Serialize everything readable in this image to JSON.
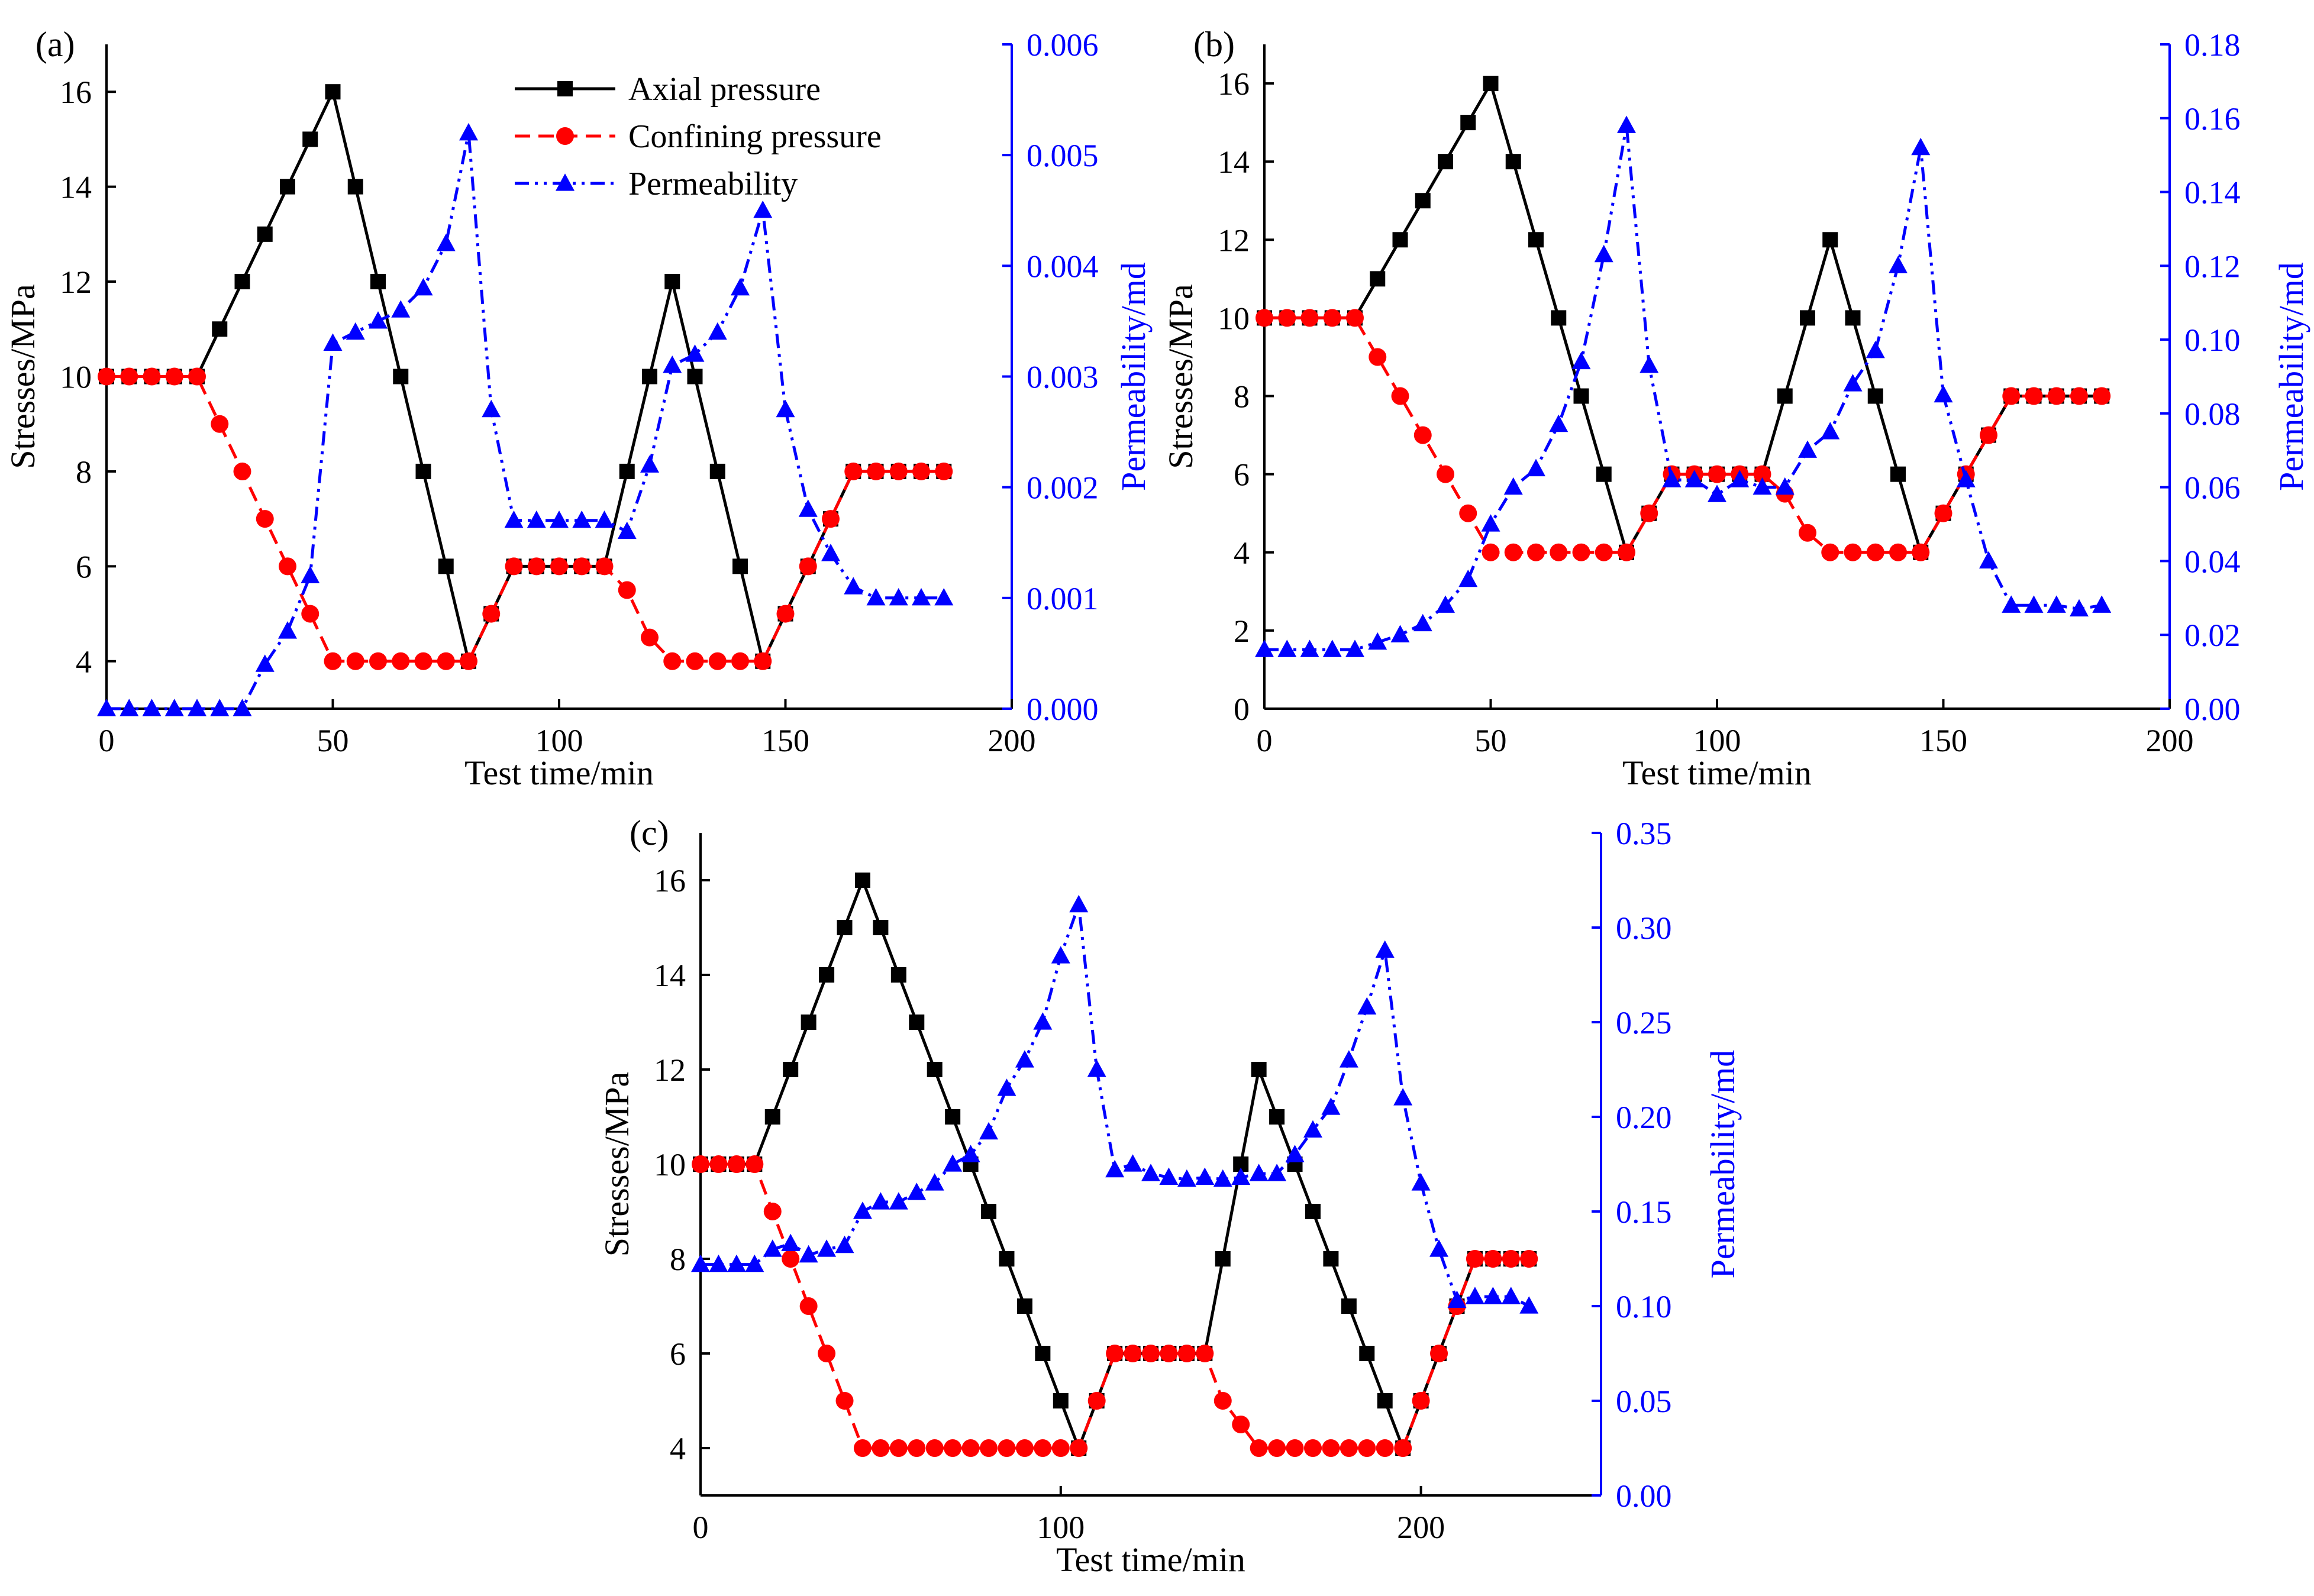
{
  "colors": {
    "axial": "#000000",
    "confining": "#ff0000",
    "permeability": "#0000ff",
    "axis_left": "#000000",
    "axis_right": "#0000ff"
  },
  "legend": {
    "axial": "Axial pressure",
    "confining": "Confining pressure",
    "permeability": "Permeability"
  },
  "chart_data": [
    {
      "panel": "(a)",
      "type": "line",
      "xlabel": "Test time/min",
      "ylabel": "Stresses/MPa",
      "y2label": "Permeability/md",
      "xlim": [
        0,
        200
      ],
      "ylim": [
        3,
        17
      ],
      "y2lim": [
        0,
        0.006
      ],
      "xticks": [
        0,
        50,
        100,
        150,
        200
      ],
      "xtick_labels": [
        "0",
        "50",
        "100",
        "150",
        "200"
      ],
      "yticks": [
        4,
        6,
        8,
        10,
        12,
        14,
        16
      ],
      "ytick_labels": [
        "4",
        "6",
        "8",
        "10",
        "12",
        "14",
        "16"
      ],
      "y2ticks": [
        0,
        0.001,
        0.002,
        0.003,
        0.004,
        0.005,
        0.006
      ],
      "y2tick_labels": [
        "0.000",
        "0.001",
        "0.002",
        "0.003",
        "0.004",
        "0.005",
        "0.006"
      ],
      "legend_position": "top-center",
      "series": [
        {
          "name": "Axial pressure",
          "axis": "left",
          "x": [
            0,
            5,
            10,
            15,
            20,
            25,
            30,
            35,
            40,
            45,
            50,
            55,
            60,
            65,
            70,
            75,
            80,
            85,
            90,
            95,
            100,
            105,
            110,
            115,
            120,
            125,
            130,
            135,
            140,
            145,
            150,
            155,
            160,
            165,
            170,
            175,
            180,
            185
          ],
          "y": [
            10,
            10,
            10,
            10,
            10,
            11,
            12,
            13,
            14,
            15,
            16,
            14,
            12,
            10,
            8,
            6,
            4,
            5,
            6,
            6,
            6,
            6,
            6,
            8,
            10,
            12,
            10,
            8,
            6,
            4,
            5,
            6,
            7,
            8,
            8,
            8,
            8,
            8
          ]
        },
        {
          "name": "Confining pressure",
          "axis": "left",
          "x": [
            0,
            5,
            10,
            15,
            20,
            25,
            30,
            35,
            40,
            45,
            50,
            55,
            60,
            65,
            70,
            75,
            80,
            85,
            90,
            95,
            100,
            105,
            110,
            115,
            120,
            125,
            130,
            135,
            140,
            145,
            150,
            155,
            160,
            165,
            170,
            175,
            180,
            185
          ],
          "y": [
            10,
            10,
            10,
            10,
            10,
            9,
            8,
            7,
            6,
            5,
            4,
            4,
            4,
            4,
            4,
            4,
            4,
            5,
            6,
            6,
            6,
            6,
            6,
            5.5,
            4.5,
            4,
            4,
            4,
            4,
            4,
            5,
            6,
            7,
            8,
            8,
            8,
            8,
            8
          ]
        },
        {
          "name": "Permeability",
          "axis": "right",
          "x": [
            0,
            5,
            10,
            15,
            20,
            25,
            30,
            35,
            40,
            45,
            50,
            55,
            60,
            65,
            70,
            75,
            80,
            85,
            90,
            95,
            100,
            105,
            110,
            115,
            120,
            125,
            130,
            135,
            140,
            145,
            150,
            155,
            160,
            165,
            170,
            175,
            180,
            185
          ],
          "y": [
            0,
            0,
            0,
            0,
            0,
            0,
            0,
            0.0004,
            0.0007,
            0.0012,
            0.0033,
            0.0034,
            0.0035,
            0.0036,
            0.0038,
            0.0042,
            0.0052,
            0.0027,
            0.0017,
            0.0017,
            0.0017,
            0.0017,
            0.0017,
            0.0016,
            0.0022,
            0.0031,
            0.0032,
            0.0034,
            0.0038,
            0.0045,
            0.0027,
            0.0018,
            0.0014,
            0.0011,
            0.001,
            0.001,
            0.001,
            0.001
          ]
        }
      ]
    },
    {
      "panel": "(b)",
      "type": "line",
      "xlabel": "Test time/min",
      "ylabel": "Stresses/MPa",
      "y2label": "Permeability/md",
      "xlim": [
        0,
        200
      ],
      "ylim": [
        0,
        17
      ],
      "y2lim": [
        0,
        0.18
      ],
      "xticks": [
        0,
        50,
        100,
        150,
        200
      ],
      "xtick_labels": [
        "0",
        "50",
        "100",
        "150",
        "200"
      ],
      "yticks": [
        0,
        2,
        4,
        6,
        8,
        10,
        12,
        14,
        16
      ],
      "ytick_labels": [
        "0",
        "2",
        "4",
        "6",
        "8",
        "10",
        "12",
        "14",
        "16"
      ],
      "y2ticks": [
        0,
        0.02,
        0.04,
        0.06,
        0.08,
        0.1,
        0.12,
        0.14,
        0.16,
        0.18
      ],
      "y2tick_labels": [
        "0.00",
        "0.02",
        "0.04",
        "0.06",
        "0.08",
        "0.10",
        "0.12",
        "0.14",
        "0.16",
        "0.18"
      ],
      "series": [
        {
          "name": "Axial pressure",
          "axis": "left",
          "x": [
            0,
            5,
            10,
            15,
            20,
            25,
            30,
            35,
            40,
            45,
            50,
            55,
            60,
            65,
            70,
            75,
            80,
            85,
            90,
            95,
            100,
            105,
            110,
            115,
            120,
            125,
            130,
            135,
            140,
            145,
            150,
            155,
            160,
            165,
            170,
            175,
            180,
            185
          ],
          "y": [
            10,
            10,
            10,
            10,
            10,
            11,
            12,
            13,
            14,
            15,
            16,
            14,
            12,
            10,
            8,
            6,
            4,
            5,
            6,
            6,
            6,
            6,
            6,
            8,
            10,
            12,
            10,
            8,
            6,
            4,
            5,
            6,
            7,
            8,
            8,
            8,
            8,
            8
          ]
        },
        {
          "name": "Confining pressure",
          "axis": "left",
          "x": [
            0,
            5,
            10,
            15,
            20,
            25,
            30,
            35,
            40,
            45,
            50,
            55,
            60,
            65,
            70,
            75,
            80,
            85,
            90,
            95,
            100,
            105,
            110,
            115,
            120,
            125,
            130,
            135,
            140,
            145,
            150,
            155,
            160,
            165,
            170,
            175,
            180,
            185
          ],
          "y": [
            10,
            10,
            10,
            10,
            10,
            9,
            8,
            7,
            6,
            5,
            4,
            4,
            4,
            4,
            4,
            4,
            4,
            5,
            6,
            6,
            6,
            6,
            6,
            5.5,
            4.5,
            4,
            4,
            4,
            4,
            4,
            5,
            6,
            7,
            8,
            8,
            8,
            8,
            8
          ]
        },
        {
          "name": "Permeability",
          "axis": "right",
          "x": [
            0,
            5,
            10,
            15,
            20,
            25,
            30,
            35,
            40,
            45,
            50,
            55,
            60,
            65,
            70,
            75,
            80,
            85,
            90,
            95,
            100,
            105,
            110,
            115,
            120,
            125,
            130,
            135,
            140,
            145,
            150,
            155,
            160,
            165,
            170,
            175,
            180,
            185
          ],
          "y": [
            0.016,
            0.016,
            0.016,
            0.016,
            0.016,
            0.018,
            0.02,
            0.023,
            0.028,
            0.035,
            0.05,
            0.06,
            0.065,
            0.077,
            0.094,
            0.123,
            0.158,
            0.093,
            0.062,
            0.062,
            0.058,
            0.062,
            0.06,
            0.06,
            0.07,
            0.075,
            0.088,
            0.097,
            0.12,
            0.152,
            0.085,
            0.062,
            0.04,
            0.028,
            0.028,
            0.028,
            0.027,
            0.028
          ]
        }
      ]
    },
    {
      "panel": "(c)",
      "type": "line",
      "xlabel": "Test time/min",
      "ylabel": "Stresses/MPa",
      "y2label": "Permeability/md",
      "xlim": [
        0,
        250
      ],
      "ylim": [
        3,
        17
      ],
      "y2lim": [
        0,
        0.35
      ],
      "xticks": [
        0,
        100,
        200
      ],
      "xtick_labels": [
        "0",
        "100",
        "200"
      ],
      "yticks": [
        4,
        6,
        8,
        10,
        12,
        14,
        16
      ],
      "ytick_labels": [
        "4",
        "6",
        "8",
        "10",
        "12",
        "14",
        "16"
      ],
      "y2ticks": [
        0,
        0.05,
        0.1,
        0.15,
        0.2,
        0.25,
        0.3,
        0.35
      ],
      "y2tick_labels": [
        "0.00",
        "0.05",
        "0.10",
        "0.15",
        "0.20",
        "0.25",
        "0.30",
        "0.35"
      ],
      "series": [
        {
          "name": "Axial pressure",
          "axis": "left",
          "x": [
            0,
            5,
            10,
            15,
            20,
            25,
            30,
            35,
            40,
            45,
            50,
            55,
            60,
            65,
            70,
            75,
            80,
            85,
            90,
            95,
            100,
            105,
            110,
            115,
            120,
            125,
            130,
            135,
            140,
            145,
            150,
            155,
            160,
            165,
            170,
            175,
            180,
            185,
            190,
            195,
            200,
            205,
            210,
            215,
            220,
            225,
            230
          ],
          "y": [
            10,
            10,
            10,
            10,
            11,
            12,
            13,
            14,
            15,
            16,
            15,
            14,
            13,
            12,
            11,
            10,
            9,
            8,
            7,
            6,
            5,
            4,
            5,
            6,
            6,
            6,
            6,
            6,
            6,
            8,
            10,
            12,
            11,
            10,
            9,
            8,
            7,
            6,
            5,
            4,
            5,
            6,
            7,
            8,
            8,
            8,
            8
          ]
        },
        {
          "name": "Confining pressure",
          "axis": "left",
          "x": [
            0,
            5,
            10,
            15,
            20,
            25,
            30,
            35,
            40,
            45,
            50,
            55,
            60,
            65,
            70,
            75,
            80,
            85,
            90,
            95,
            100,
            105,
            110,
            115,
            120,
            125,
            130,
            135,
            140,
            145,
            150,
            155,
            160,
            165,
            170,
            175,
            180,
            185,
            190,
            195,
            200,
            205,
            210,
            215,
            220,
            225,
            230
          ],
          "y": [
            10,
            10,
            10,
            10,
            9,
            8,
            7,
            6,
            5,
            4,
            4,
            4,
            4,
            4,
            4,
            4,
            4,
            4,
            4,
            4,
            4,
            4,
            5,
            6,
            6,
            6,
            6,
            6,
            6,
            5,
            4.5,
            4,
            4,
            4,
            4,
            4,
            4,
            4,
            4,
            4,
            5,
            6,
            7,
            8,
            8,
            8,
            8
          ]
        },
        {
          "name": "Permeability",
          "axis": "right",
          "x": [
            0,
            5,
            10,
            15,
            20,
            25,
            30,
            35,
            40,
            45,
            50,
            55,
            60,
            65,
            70,
            75,
            80,
            85,
            90,
            95,
            100,
            105,
            110,
            115,
            120,
            125,
            130,
            135,
            140,
            145,
            150,
            155,
            160,
            165,
            170,
            175,
            180,
            185,
            190,
            195,
            200,
            205,
            210,
            215,
            220,
            225,
            230
          ],
          "y": [
            0.122,
            0.122,
            0.122,
            0.122,
            0.13,
            0.133,
            0.127,
            0.13,
            0.132,
            0.15,
            0.155,
            0.155,
            0.16,
            0.165,
            0.175,
            0.18,
            0.192,
            0.215,
            0.23,
            0.25,
            0.285,
            0.312,
            0.225,
            0.172,
            0.175,
            0.17,
            0.168,
            0.167,
            0.168,
            0.167,
            0.168,
            0.17,
            0.17,
            0.18,
            0.193,
            0.205,
            0.23,
            0.258,
            0.288,
            0.21,
            0.165,
            0.13,
            0.103,
            0.105,
            0.105,
            0.105,
            0.1
          ]
        }
      ]
    }
  ]
}
